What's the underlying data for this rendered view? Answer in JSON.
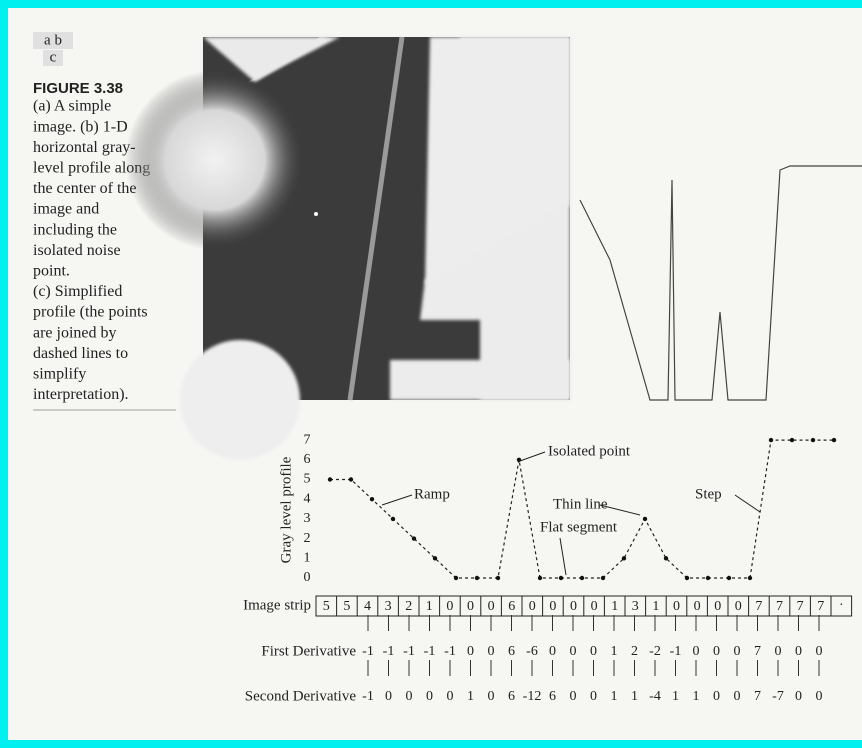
{
  "panel_labels": {
    "top": "a b",
    "bottom": "c"
  },
  "caption": {
    "figure": "FIGURE 3.38",
    "lines": [
      "(a) A simple",
      "image. (b) 1-D",
      "horizontal gray-",
      "level profile along",
      "the center of the",
      "image and",
      "including the",
      "isolated noise",
      "point.",
      "(c) Simplified",
      "profile (the points",
      "are joined by",
      "dashed lines to",
      "simplify",
      "interpretation)."
    ]
  },
  "profile_plot": {
    "y_label": "Gray level profile",
    "yticks": [
      0,
      1,
      2,
      3,
      4,
      5,
      6,
      7
    ],
    "annotations": [
      "Isolated point",
      "Ramp",
      "Thin line",
      "Flat segment",
      "Step"
    ]
  },
  "image_strip": {
    "label": "Image strip",
    "values": [
      5,
      5,
      4,
      3,
      2,
      1,
      0,
      0,
      0,
      6,
      0,
      0,
      0,
      0,
      1,
      3,
      1,
      0,
      0,
      0,
      0,
      7,
      7,
      7,
      7
    ],
    "continuation": "·"
  },
  "first_derivative": {
    "label": "First Derivative",
    "values": [
      -1,
      -1,
      -1,
      -1,
      -1,
      0,
      0,
      6,
      -6,
      0,
      0,
      0,
      1,
      2,
      -2,
      -1,
      0,
      0,
      0,
      7,
      0,
      0,
      0
    ]
  },
  "second_derivative": {
    "label": "Second Derivative",
    "values": [
      -1,
      0,
      0,
      0,
      0,
      1,
      0,
      6,
      -12,
      6,
      0,
      0,
      1,
      1,
      -4,
      1,
      1,
      0,
      0,
      7,
      -7,
      0,
      0
    ]
  }
}
